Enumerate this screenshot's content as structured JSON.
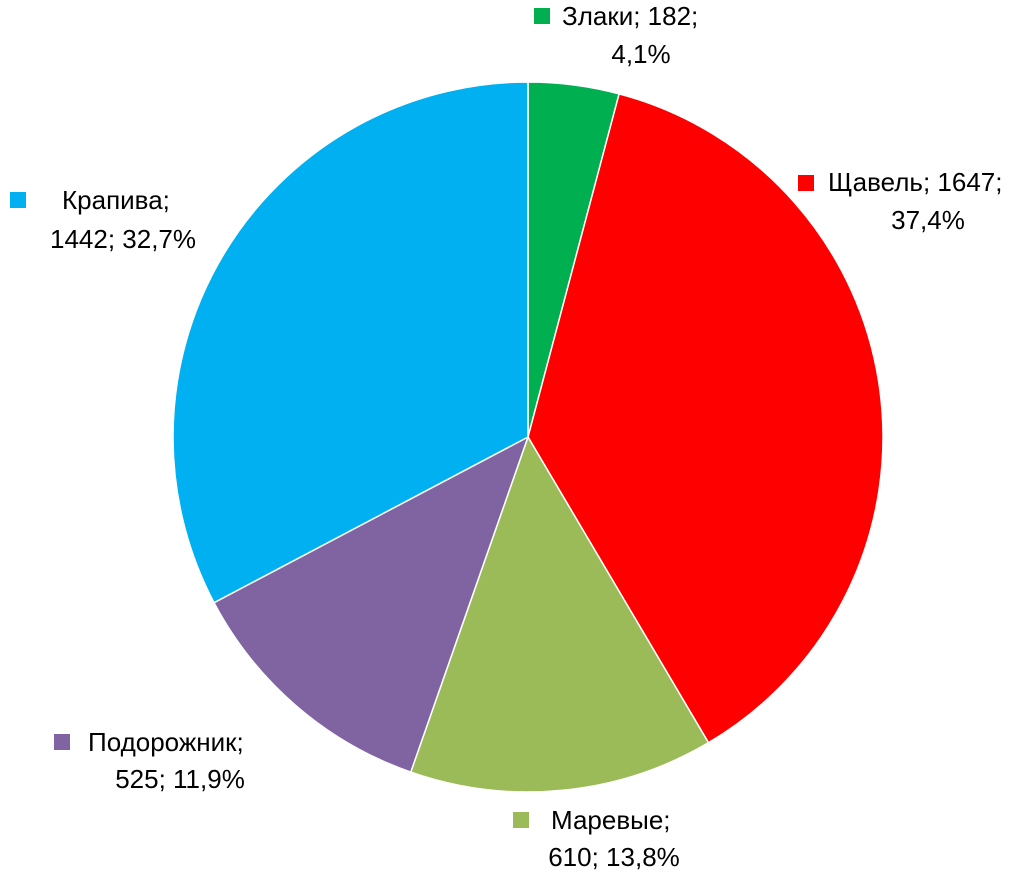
{
  "chart_data": {
    "type": "pie",
    "values": [
      182,
      1647,
      610,
      525,
      1442
    ],
    "colors": [
      "#00b050",
      "#ff0000",
      "#9bbb59",
      "#8064a2",
      "#00b0f0"
    ],
    "data_labels": [
      [
        "Злаки; 182;",
        "4,1%"
      ],
      [
        "Щавель; 1647;",
        "37,4%"
      ],
      [
        "Маревые;",
        "610; 13,8%"
      ],
      [
        "Подорожник;",
        "525; 11,9%"
      ],
      [
        "Крапива;",
        "1442; 32,7%"
      ]
    ]
  }
}
